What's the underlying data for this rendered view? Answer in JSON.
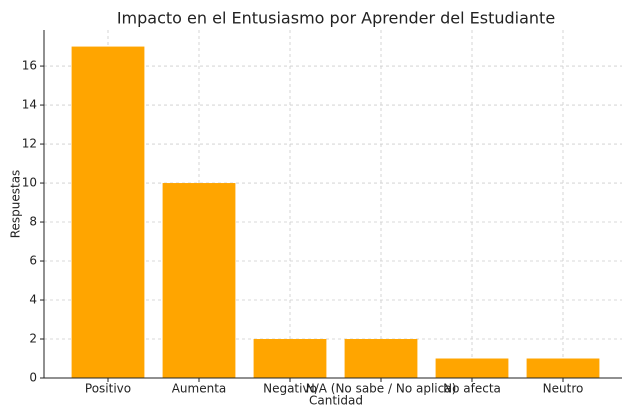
{
  "chart_data": {
    "type": "bar",
    "title": "Impacto en el Entusiasmo por Aprender del Estudiante",
    "x_label": "Cantidad",
    "y_label": "Respuestas",
    "categories": [
      "Positivo",
      "Aumenta",
      "Negativo",
      "N/A (No sabe / No aplica)",
      "No afecta",
      "Neutro"
    ],
    "values": [
      17,
      10,
      2,
      2,
      1,
      1
    ],
    "color": "#ffa500",
    "ylim": [
      0,
      17.85
    ],
    "yticks": [
      0,
      2,
      4,
      6,
      8,
      10,
      12,
      14,
      16
    ],
    "grid": true
  }
}
